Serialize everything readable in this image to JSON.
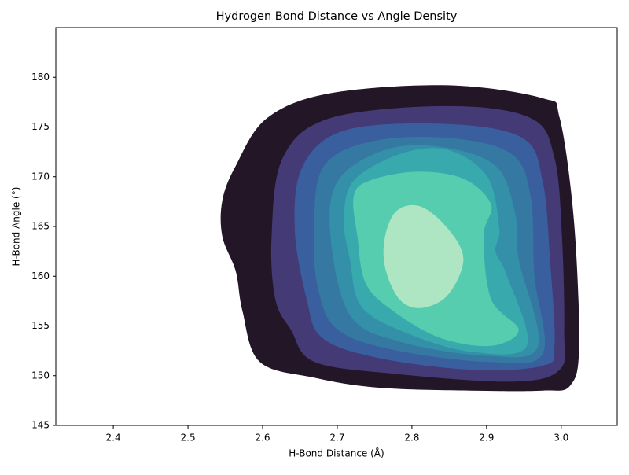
{
  "chart_data": {
    "type": "kde",
    "title": "Hydrogen Bond Distance vs Angle Density",
    "xlabel": "H-Bond Distance (Å)",
    "ylabel": "H-Bond Angle (°)",
    "xlim": [
      2.323,
      3.075
    ],
    "ylim": [
      145,
      185
    ],
    "xticks": [
      2.4,
      2.5,
      2.6,
      2.7,
      2.8,
      2.9,
      {
        "value": 3,
        "label": "3.0"
      }
    ],
    "yticks": [
      145,
      150,
      155,
      160,
      165,
      170,
      175,
      180
    ],
    "grid": false,
    "levels": [
      {
        "color": "#231627",
        "x": [
          2.546,
          2.564,
          2.606,
          2.691,
          2.848,
          2.975,
          2.998,
          3.017,
          3.024,
          3.012,
          2.975,
          2.88,
          2.754,
          2.669,
          2.596,
          2.573,
          2.564,
          2.546
        ],
        "y": [
          167.6,
          171.1,
          175.9,
          178.4,
          179.2,
          177.9,
          175.9,
          165.6,
          153.0,
          149.0,
          148.5,
          148.5,
          148.8,
          149.8,
          151.4,
          156.5,
          160.5,
          164.0
        ]
      },
      {
        "color": "#433a76",
        "x": [
          2.612,
          2.627,
          2.691,
          2.848,
          2.959,
          2.991,
          3.001,
          3.004,
          2.998,
          2.933,
          2.775,
          2.669,
          2.638,
          2.617
        ],
        "y": [
          164.0,
          171.9,
          175.9,
          177.1,
          175.9,
          171.9,
          164.0,
          154.6,
          150.6,
          149.4,
          150.2,
          151.4,
          154.6,
          157.7
        ]
      },
      {
        "color": "#3a5f9f",
        "x": [
          2.643,
          2.654,
          2.712,
          2.848,
          2.948,
          2.975,
          2.985,
          2.991,
          2.975,
          2.88,
          2.754,
          2.68,
          2.659
        ],
        "y": [
          164.8,
          171.1,
          174.7,
          175.3,
          173.9,
          169.6,
          161.7,
          153.0,
          151.0,
          150.6,
          151.8,
          153.8,
          157.7
        ]
      },
      {
        "color": "#3579a2",
        "x": [
          2.669,
          2.68,
          2.743,
          2.848,
          2.933,
          2.959,
          2.964,
          2.975,
          2.901,
          2.775,
          2.701,
          2.675
        ],
        "y": [
          164.0,
          170.8,
          173.5,
          173.9,
          172.3,
          168.0,
          160.1,
          152.2,
          151.4,
          152.6,
          154.6,
          158.5
        ]
      },
      {
        "color": "#3490a8",
        "x": [
          2.691,
          2.701,
          2.764,
          2.838,
          2.912,
          2.938,
          2.943,
          2.969,
          2.901,
          2.785,
          2.717
        ],
        "y": [
          164.0,
          169.6,
          172.7,
          173.0,
          171.1,
          166.4,
          161.7,
          153.0,
          152.0,
          153.4,
          156.1
        ]
      },
      {
        "color": "#38aaad",
        "x": [
          2.709,
          2.722,
          2.785,
          2.848,
          2.901,
          2.917,
          2.912,
          2.927,
          2.954,
          2.88,
          2.796,
          2.733,
          2.717
        ],
        "y": [
          165.6,
          169.6,
          172.3,
          172.7,
          170.0,
          164.8,
          162.5,
          160.1,
          153.0,
          152.4,
          154.2,
          156.9,
          161.7
        ]
      },
      {
        "color": "#55cdae",
        "x": [
          2.722,
          2.743,
          2.806,
          2.869,
          2.906,
          2.896,
          2.906,
          2.943,
          2.906,
          2.838,
          2.775,
          2.738,
          2.727
        ],
        "y": [
          168.0,
          169.6,
          170.5,
          169.8,
          167.2,
          164.0,
          157.7,
          154.6,
          153.0,
          153.8,
          156.5,
          159.3,
          164.0
        ]
      },
      {
        "color": "#aee5c3",
        "x": [
          2.764,
          2.78,
          2.812,
          2.848,
          2.869,
          2.848,
          2.812,
          2.783,
          2.764
        ],
        "y": [
          164.0,
          166.6,
          167.0,
          164.8,
          161.7,
          158.1,
          156.8,
          157.7,
          160.9
        ]
      }
    ]
  }
}
